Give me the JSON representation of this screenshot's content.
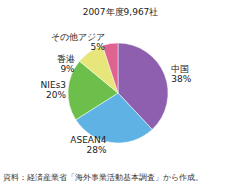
{
  "chart_data": {
    "type": "pie",
    "title": "2007年度9,967社",
    "categories": [
      "中国",
      "ASEAN4",
      "NIEs3",
      "香港",
      "その他アジア"
    ],
    "values": [
      38,
      28,
      20,
      9,
      5
    ],
    "value_labels": [
      "38%",
      "28%",
      "20%",
      "9%",
      "5%"
    ],
    "colors": [
      "#8e5fae",
      "#5fb3e4",
      "#6dbf4c",
      "#e6e67a",
      "#e0628e"
    ],
    "data_labels": true,
    "annotations": [
      "資料：経済産業省「海外事業活動基本調査」から作成。"
    ]
  }
}
